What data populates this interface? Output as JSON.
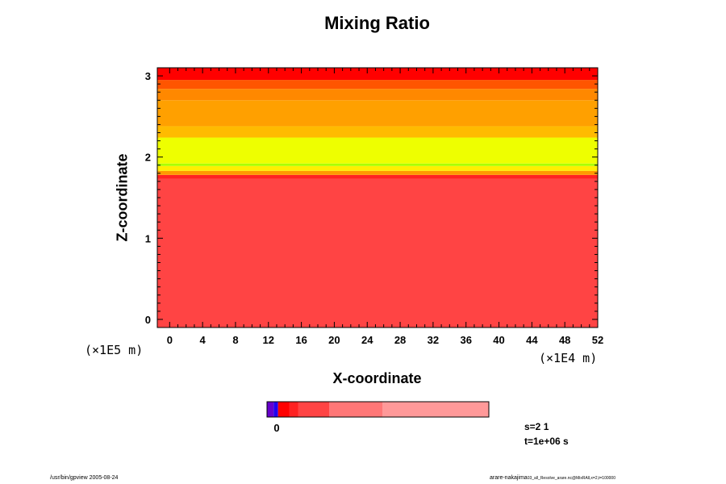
{
  "chart_data": {
    "type": "heatmap",
    "title": "Mixing Ratio",
    "xlabel": "X-coordinate",
    "ylabel": "Z-coordinate",
    "x_unit": "(×1E4 m)",
    "y_unit": "(×1E5 m)",
    "xlim": [
      -1.5,
      52
    ],
    "ylim": [
      -0.1,
      3.1
    ],
    "x_ticks": [
      "0",
      "4",
      "8",
      "12",
      "16",
      "20",
      "24",
      "28",
      "32",
      "36",
      "40",
      "44",
      "48",
      "52"
    ],
    "y_ticks": [
      "0",
      "1",
      "2",
      "3"
    ],
    "bands": [
      {
        "z_from": -0.1,
        "z_to": 1.73,
        "color": "#ff4444"
      },
      {
        "z_from": 1.73,
        "z_to": 1.78,
        "color": "#ff2222"
      },
      {
        "z_from": 1.78,
        "z_to": 1.83,
        "color": "#ff9900"
      },
      {
        "z_from": 1.83,
        "z_to": 1.89,
        "color": "#ffee00"
      },
      {
        "z_from": 1.89,
        "z_to": 1.92,
        "color": "#aaff00"
      },
      {
        "z_from": 1.92,
        "z_to": 2.24,
        "color": "#eeff00"
      },
      {
        "z_from": 2.24,
        "z_to": 2.38,
        "color": "#ffbb00"
      },
      {
        "z_from": 2.38,
        "z_to": 2.7,
        "color": "#ffa000"
      },
      {
        "z_from": 2.7,
        "z_to": 2.84,
        "color": "#ff8800"
      },
      {
        "z_from": 2.84,
        "z_to": 2.95,
        "color": "#ff5500"
      },
      {
        "z_from": 2.95,
        "z_to": 3.1,
        "color": "#ff0000"
      }
    ],
    "colorbar": {
      "label": "0",
      "segments": [
        {
          "from": 0.0,
          "to": 0.03,
          "color": "#6600cc"
        },
        {
          "from": 0.03,
          "to": 0.05,
          "color": "#2200ee"
        },
        {
          "from": 0.05,
          "to": 0.1,
          "color": "#ff0000"
        },
        {
          "from": 0.1,
          "to": 0.14,
          "color": "#ff2222"
        },
        {
          "from": 0.14,
          "to": 0.28,
          "color": "#ff4444"
        },
        {
          "from": 0.28,
          "to": 0.52,
          "color": "#ff7777"
        },
        {
          "from": 0.52,
          "to": 1.0,
          "color": "#ff9999"
        }
      ]
    }
  },
  "info": {
    "s": "s=2 1",
    "t": "t=1e+06 s"
  },
  "footer": {
    "left": "/usr/bin/gpview 2005-08-24",
    "right_name": "arare-nakajima",
    "right_file": "03_all_Resolve_arare.nc@MixRAll,x=2,t=100000"
  }
}
